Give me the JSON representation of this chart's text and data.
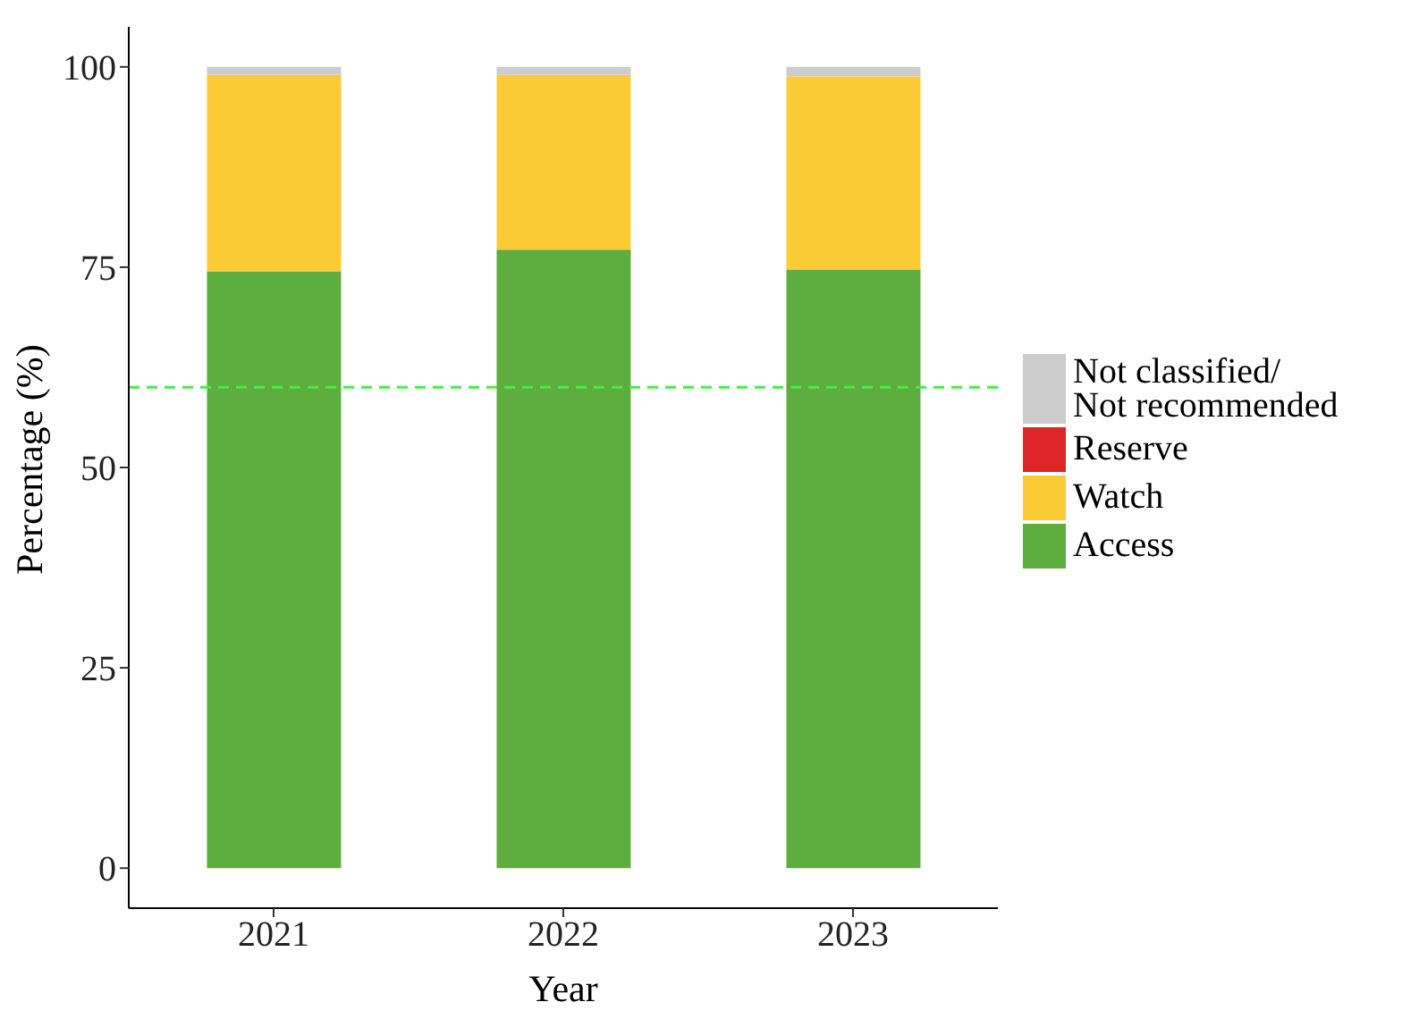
{
  "chart_data": {
    "type": "bar",
    "stacked": true,
    "xlabel": "Year",
    "ylabel": "Percentage (%)",
    "categories": [
      "2021",
      "2022",
      "2023"
    ],
    "series": [
      {
        "name": "Access",
        "color": "#5dae3f",
        "values": [
          74.5,
          77.2,
          74.7
        ]
      },
      {
        "name": "Watch",
        "color": "#fbcb35",
        "values": [
          24.5,
          21.8,
          24.1
        ]
      },
      {
        "name": "Reserve",
        "color": "#de2527",
        "values": [
          0,
          0,
          0
        ]
      },
      {
        "name": "Not classified/\nNot recommended",
        "color": "#cccccc",
        "values": [
          1.0,
          1.0,
          1.2
        ]
      }
    ],
    "ylim": [
      -5,
      105
    ],
    "yticks": [
      0,
      25,
      50,
      75,
      100
    ],
    "grid": false,
    "legend": "right",
    "ref_lines": [
      {
        "axis": "y",
        "value": 60,
        "color": "#44ee44",
        "line_style": "dashed"
      }
    ]
  }
}
